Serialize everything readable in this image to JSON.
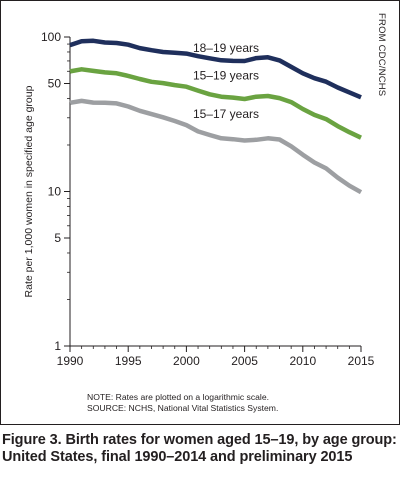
{
  "figure": {
    "credit": "FROM CDC/NCHS",
    "note": "NOTE: Rates are plotted on a logarithmic scale.",
    "source": "SOURCE: NCHS, National Vital Statistics System.",
    "caption": "Figure 3. Birth rates for women aged 15–19, by age group: United States, final 1990–2014 and preliminary 2015"
  },
  "chart_data": {
    "type": "line",
    "title": "",
    "xlabel": "",
    "ylabel": "Rate per 1,000 women in specified age group",
    "y_scale": "log",
    "xlim": [
      1990,
      2015
    ],
    "ylim": [
      1,
      100
    ],
    "x_ticks": [
      1990,
      1995,
      2000,
      2005,
      2010,
      2015
    ],
    "y_ticks": [
      1,
      5,
      10,
      50,
      100
    ],
    "grid": false,
    "legend": "labels placed directly above each line",
    "x": [
      1990,
      1991,
      1992,
      1993,
      1994,
      1995,
      1996,
      1997,
      1998,
      1999,
      2000,
      2001,
      2002,
      2003,
      2004,
      2005,
      2006,
      2007,
      2008,
      2009,
      2010,
      2011,
      2012,
      2013,
      2014,
      2015
    ],
    "series": [
      {
        "name": "18–19 years",
        "color": "#1f2f5c",
        "values": [
          88.6,
          94.0,
          94.5,
          92.1,
          91.5,
          89.1,
          84.7,
          82.1,
          80.0,
          79.1,
          78.1,
          75.1,
          72.8,
          70.7,
          70.0,
          69.9,
          73.0,
          73.9,
          70.6,
          64.0,
          58.2,
          54.1,
          51.4,
          47.1,
          43.8,
          40.7
        ]
      },
      {
        "name": "15–19 years",
        "color": "#6aa341",
        "values": [
          59.9,
          61.8,
          60.3,
          59.0,
          58.2,
          56.0,
          53.5,
          51.3,
          50.3,
          48.8,
          47.7,
          45.0,
          42.6,
          41.1,
          40.5,
          39.7,
          41.1,
          41.5,
          40.2,
          37.9,
          34.2,
          31.3,
          29.4,
          26.5,
          24.2,
          22.3
        ]
      },
      {
        "name": "15–17 years",
        "color": "#9d9fa2",
        "values": [
          37.5,
          38.6,
          37.6,
          37.5,
          37.2,
          35.5,
          33.3,
          31.7,
          30.2,
          28.6,
          26.9,
          24.5,
          23.2,
          22.1,
          21.8,
          21.4,
          21.6,
          22.1,
          21.7,
          19.6,
          17.3,
          15.4,
          14.1,
          12.3,
          10.9,
          9.9
        ]
      }
    ]
  }
}
